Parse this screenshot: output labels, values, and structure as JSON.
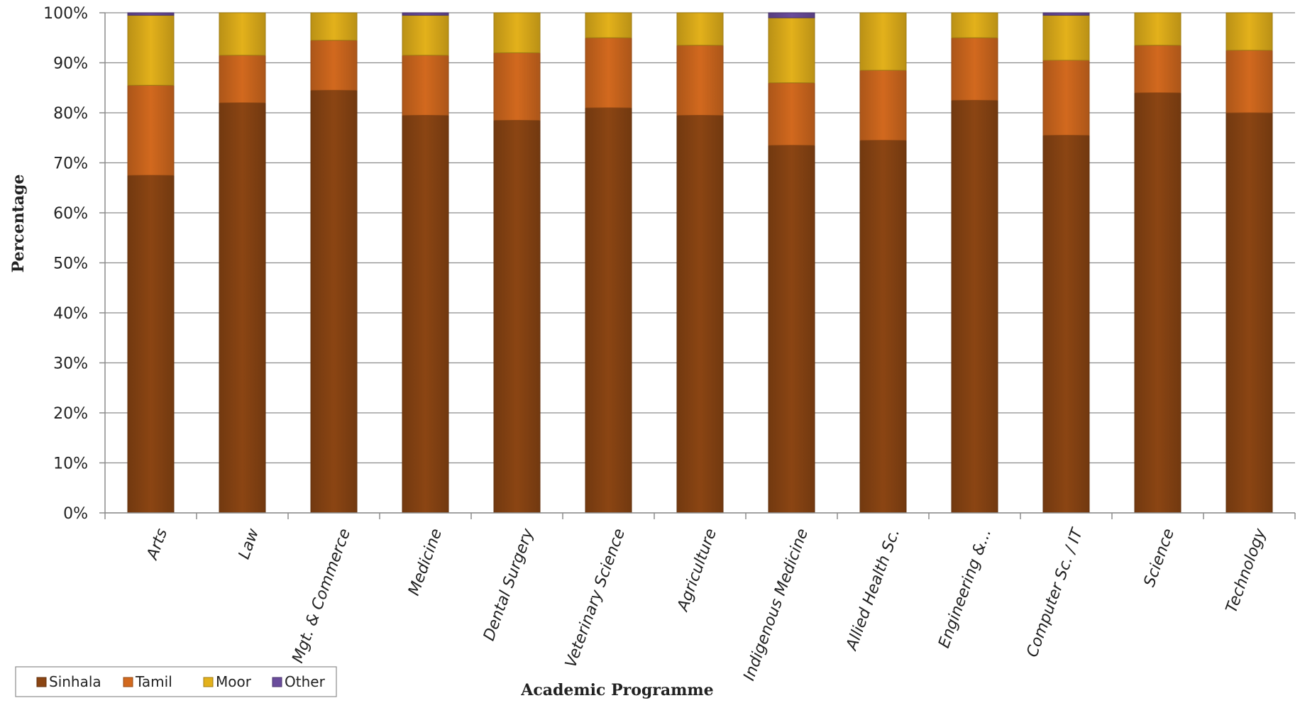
{
  "chart_data": {
    "type": "bar",
    "stacked": true,
    "percent": true,
    "xlabel": "Academic Programme",
    "ylabel": "Percentage",
    "ylim": [
      0,
      100
    ],
    "yticks": [
      "0%",
      "10%",
      "20%",
      "30%",
      "40%",
      "50%",
      "60%",
      "70%",
      "80%",
      "90%",
      "100%"
    ],
    "grid": true,
    "legend_position": "bottom-left",
    "categories": [
      "Arts",
      "Law",
      "Mgt. & Commerce",
      "Medicine",
      "Dental Surgery",
      "Veterinary Science",
      "Agriculture",
      "Indigenous Medicine",
      "Allied Health Sc.",
      "Engineering &...",
      "Computer Sc. / IT",
      "Science",
      "Technology"
    ],
    "series": [
      {
        "name": "Sinhala",
        "color": "#8B4513",
        "values": [
          67.5,
          82,
          84.5,
          79.5,
          78.5,
          81,
          79.5,
          73.5,
          74.5,
          82.5,
          75.5,
          84,
          80
        ]
      },
      {
        "name": "Tamil",
        "color": "#D2691E",
        "values": [
          18,
          9.5,
          10,
          12,
          13.5,
          14,
          14,
          12.5,
          14,
          12.5,
          15,
          9.5,
          12.5
        ]
      },
      {
        "name": "Moor",
        "color": "#E3B11B",
        "values": [
          14,
          8.5,
          5.5,
          8,
          8,
          5,
          6.5,
          13,
          11.5,
          5,
          9,
          6.5,
          7.5
        ]
      },
      {
        "name": "Other",
        "color": "#6A4C9C",
        "values": [
          0.5,
          0,
          0,
          0.5,
          0,
          0,
          0,
          1,
          0,
          0,
          0.5,
          0,
          0
        ]
      }
    ]
  }
}
